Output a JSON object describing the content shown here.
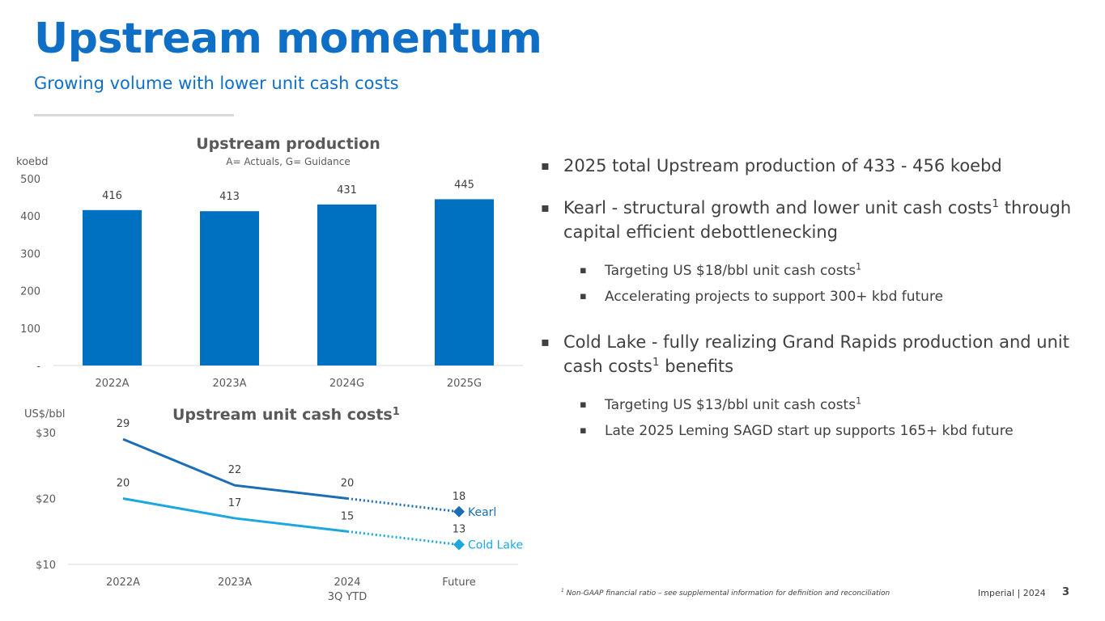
{
  "header": {
    "title": "Upstream momentum",
    "subtitle": "Growing volume with lower unit cash costs"
  },
  "colors": {
    "brand": "#0f6fc6",
    "bar": "#0070c0",
    "kearl": "#1b6db5",
    "cold_lake": "#1ca7e0"
  },
  "chart_data": [
    {
      "type": "bar",
      "title": "Upstream production",
      "subtitle": "A= Actuals, G= Guidance",
      "ylabel": "koebd",
      "categories": [
        "2022A",
        "2023A",
        "2024G",
        "2025G"
      ],
      "values": [
        416,
        413,
        431,
        445
      ],
      "value_labels": [
        "416",
        "413",
        "431",
        "445"
      ],
      "ylim": [
        0,
        500
      ],
      "yticks": [
        0,
        100,
        200,
        300,
        400,
        500
      ],
      "ytick_labels": [
        "-",
        "100",
        "200",
        "300",
        "400",
        "500"
      ]
    },
    {
      "type": "line",
      "title": "Upstream unit cash costs",
      "title_sup": "1",
      "ylabel": "US$/bbl",
      "categories": [
        "2022A",
        "2023A",
        "2024",
        "Future"
      ],
      "category_sublabels": [
        "",
        "",
        "3Q YTD",
        ""
      ],
      "ylim": [
        10,
        30
      ],
      "yticks": [
        10,
        20,
        30
      ],
      "ytick_labels": [
        "$10",
        "$20",
        "$30"
      ],
      "series": [
        {
          "name": "Kearl",
          "values": [
            29,
            22,
            20,
            18
          ],
          "labels": [
            "29",
            "22",
            "20",
            "18"
          ]
        },
        {
          "name": "Cold Lake",
          "values": [
            20,
            17,
            15,
            13
          ],
          "labels": [
            "20",
            "17",
            "15",
            "13"
          ]
        }
      ],
      "note": "Solid lines 2022A-2024, dotted projection to Future"
    }
  ],
  "bullets": {
    "b1": "2025 total Upstream production of 433 - 456 koebd",
    "b2_pre": "Kearl - structural growth and lower unit cash costs",
    "b2_sup": "1",
    "b2_post": " through capital efficient debottlenecking",
    "b2_sub1_pre": "Targeting US $18/bbl unit cash costs",
    "b2_sub1_sup": "1",
    "b2_sub2": "Accelerating projects to support 300+ kbd future",
    "b3_pre": "Cold Lake - fully realizing Grand Rapids production and unit cash costs",
    "b3_sup": "1",
    "b3_post": " benefits",
    "b3_sub1_pre": "Targeting US $13/bbl unit cash costs",
    "b3_sub1_sup": "1",
    "b3_sub2": "Late 2025 Leming SAGD start up supports 165+ kbd future"
  },
  "footer": {
    "footnote_sup": "1",
    "footnote": " Non-GAAP financial ratio – see supplemental information for definition and reconciliation",
    "brand": "Imperial  |  2024",
    "page": "3"
  }
}
